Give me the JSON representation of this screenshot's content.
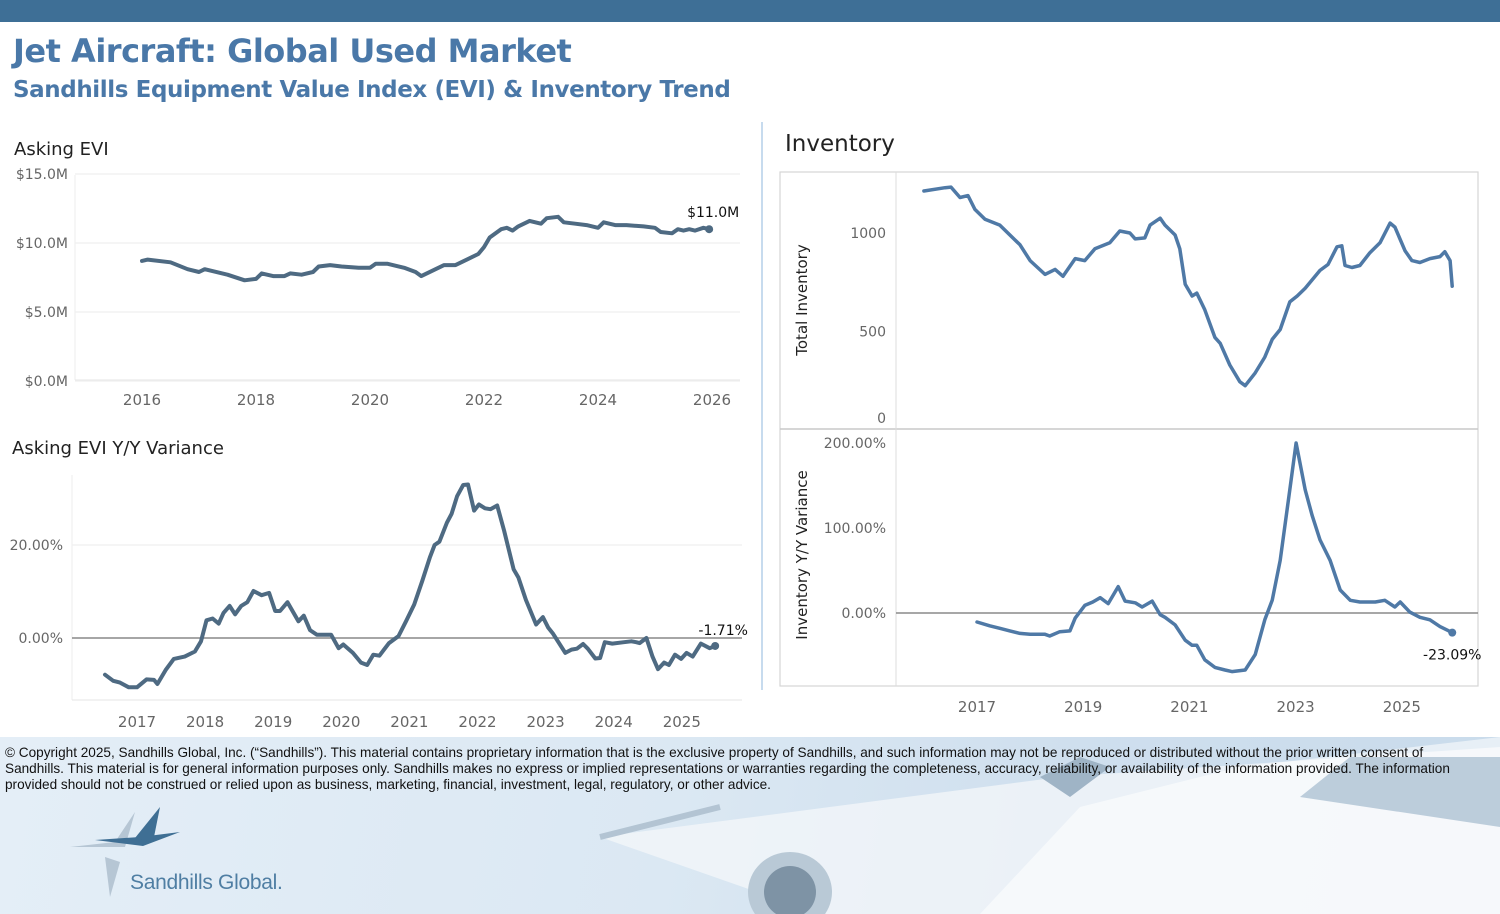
{
  "header": {
    "title": "Jet Aircraft:  Global Used Market",
    "subtitle": "Sandhills Equipment Value Index (EVI) & Inventory Trend"
  },
  "panels": {
    "asking_evi": "Asking EVI",
    "asking_evi_yy": "Asking EVI Y/Y Variance",
    "inventory": "Inventory"
  },
  "colors": {
    "header_bar": "#3e6f96",
    "title": "#4a78a8",
    "evi_line": "#4e6a82",
    "inventory_line": "#4f79a6"
  },
  "footer": {
    "legal": "© Copyright 2025, Sandhills Global, Inc. (“Sandhills”). This material contains proprietary information that is the exclusive property of Sandhills, and such information may not be reproduced or distributed without the prior written consent of Sandhills. This material is for general information purposes only. Sandhills makes no express or implied representations or warranties regarding the completeness, accuracy, reliability, or availability of the information provided. The information provided should not be construed or relied upon as business, marketing, financial, investment, legal, regulatory, or other advice.",
    "brand": "Sandhills Global."
  },
  "chart_data": [
    {
      "id": "evi",
      "type": "line",
      "title": "Asking EVI",
      "xlabel": "",
      "ylabel": "",
      "ylim": [
        0,
        15
      ],
      "xlim": [
        2015,
        2026.5
      ],
      "yticks": [
        "$0.0M",
        "$5.0M",
        "$10.0M",
        "$15.0M"
      ],
      "ytick_values": [
        0,
        5,
        10,
        15
      ],
      "xticks": [
        "2016",
        "2018",
        "2020",
        "2022",
        "2024",
        "2026"
      ],
      "xtick_values": [
        2016,
        2018,
        2020,
        2022,
        2024,
        2026
      ],
      "end_label": "$11.0M",
      "grid": true,
      "x": [
        2016.0,
        2016.1,
        2016.5,
        2016.8,
        2017.0,
        2017.1,
        2017.5,
        2017.8,
        2018.0,
        2018.1,
        2018.3,
        2018.5,
        2018.6,
        2018.8,
        2019.0,
        2019.1,
        2019.3,
        2019.5,
        2019.8,
        2020.0,
        2020.1,
        2020.3,
        2020.6,
        2020.8,
        2020.9,
        2021.2,
        2021.3,
        2021.5,
        2021.7,
        2021.9,
        2022.0,
        2022.1,
        2022.3,
        2022.4,
        2022.5,
        2022.6,
        2022.8,
        2023.0,
        2023.1,
        2023.3,
        2023.4,
        2023.6,
        2023.8,
        2024.0,
        2024.1,
        2024.3,
        2024.5,
        2024.8,
        2025.0,
        2025.1,
        2025.3,
        2025.4,
        2025.5,
        2025.6,
        2025.7,
        2025.85,
        2025.95
      ],
      "values": [
        8.7,
        8.8,
        8.6,
        8.1,
        7.9,
        8.1,
        7.7,
        7.3,
        7.4,
        7.8,
        7.6,
        7.6,
        7.8,
        7.7,
        7.9,
        8.3,
        8.4,
        8.3,
        8.2,
        8.2,
        8.5,
        8.5,
        8.2,
        7.9,
        7.6,
        8.2,
        8.4,
        8.4,
        8.8,
        9.2,
        9.7,
        10.4,
        11.0,
        11.1,
        10.9,
        11.2,
        11.6,
        11.4,
        11.8,
        11.9,
        11.5,
        11.4,
        11.3,
        11.1,
        11.5,
        11.3,
        11.3,
        11.2,
        11.1,
        10.8,
        10.7,
        11.0,
        10.9,
        11.0,
        10.9,
        11.1,
        11.0
      ]
    },
    {
      "id": "evi_yy",
      "type": "line",
      "title": "Asking EVI Y/Y Variance",
      "xlabel": "",
      "ylabel": "",
      "ylim": [
        -13,
        36
      ],
      "yticks": [
        "0.00%",
        "20.00%"
      ],
      "ytick_values": [
        0,
        20
      ],
      "xticks": [
        "2017",
        "2018",
        "2019",
        "2020",
        "2021",
        "2022",
        "2023",
        "2024",
        "2025"
      ],
      "xtick_values": [
        2017.5,
        2018.5,
        2019.5,
        2020.5,
        2021.5,
        2022.5,
        2023.5,
        2024.5,
        2025.5
      ],
      "end_label": "-1.71%",
      "reference_line": 0,
      "grid": true,
      "x": [
        2017.03,
        2017.15,
        2017.25,
        2017.38,
        2017.5,
        2017.64,
        2017.75,
        2017.8,
        2017.92,
        2018.04,
        2018.2,
        2018.35,
        2018.44,
        2018.52,
        2018.61,
        2018.7,
        2018.77,
        2018.86,
        2018.94,
        2019.03,
        2019.12,
        2019.21,
        2019.33,
        2019.44,
        2019.53,
        2019.6,
        2019.71,
        2019.8,
        2019.87,
        2019.95,
        2020.04,
        2020.14,
        2020.35,
        2020.46,
        2020.53,
        2020.67,
        2020.79,
        2020.88,
        2020.97,
        2021.06,
        2021.2,
        2021.34,
        2021.45,
        2021.57,
        2021.69,
        2021.8,
        2021.87,
        2021.94,
        2022.05,
        2022.12,
        2022.2,
        2022.29,
        2022.36,
        2022.45,
        2022.52,
        2022.61,
        2022.69,
        2022.79,
        2022.89,
        2023.03,
        2023.1,
        2023.21,
        2023.36,
        2023.46,
        2023.54,
        2023.61,
        2023.79,
        2023.88,
        2023.96,
        2024.05,
        2024.12,
        2024.23,
        2024.3,
        2024.37,
        2024.48,
        2024.65,
        2024.76,
        2024.83,
        2024.88,
        2024.98,
        2025.07,
        2025.15,
        2025.24,
        2025.31,
        2025.4,
        2025.49,
        2025.57,
        2025.66,
        2025.78,
        2025.91,
        2025.99
      ],
      "values": [
        -7.9,
        -9.2,
        -9.6,
        -10.6,
        -10.6,
        -8.9,
        -9.0,
        -9.9,
        -6.9,
        -4.5,
        -4.0,
        -2.9,
        -0.7,
        3.8,
        4.2,
        3.1,
        5.4,
        6.9,
        5.1,
        6.9,
        7.7,
        10.1,
        9.2,
        9.7,
        5.8,
        5.8,
        7.7,
        5.4,
        3.6,
        4.8,
        1.7,
        0.7,
        0.7,
        -2.2,
        -1.4,
        -3.2,
        -5.3,
        -5.8,
        -3.6,
        -3.8,
        -1.1,
        0.4,
        3.6,
        7.2,
        12.3,
        17.3,
        20.0,
        20.7,
        24.8,
        26.7,
        30.5,
        32.9,
        33.0,
        27.4,
        28.7,
        27.9,
        27.7,
        28.5,
        23.1,
        14.8,
        13.0,
        8.2,
        2.9,
        4.5,
        2.2,
        0.9,
        -3.2,
        -2.5,
        -2.3,
        -1.3,
        -2.3,
        -4.4,
        -4.3,
        -0.9,
        -1.2,
        -0.9,
        -0.7,
        -0.9,
        -1.1,
        0.0,
        -4.0,
        -6.7,
        -5.3,
        -5.8,
        -3.6,
        -4.5,
        -3.2,
        -4.0,
        -1.2,
        -2.2,
        -1.71
      ]
    },
    {
      "id": "inventory",
      "type": "line",
      "title": "Inventory",
      "xlabel": "",
      "ylabel": "Total Inventory",
      "ylim": [
        0,
        1290
      ],
      "yticks": [
        "0",
        "500",
        "1000"
      ],
      "ytick_values": [
        0,
        500,
        1000
      ],
      "grid": false,
      "x": [
        2016.0,
        2016.4,
        2016.51,
        2016.68,
        2016.83,
        2016.96,
        2017.15,
        2017.43,
        2017.62,
        2017.81,
        2018.0,
        2018.28,
        2018.47,
        2018.62,
        2018.85,
        2019.03,
        2019.22,
        2019.5,
        2019.69,
        2019.88,
        2019.98,
        2020.16,
        2020.26,
        2020.45,
        2020.54,
        2020.73,
        2020.82,
        2020.92,
        2021.05,
        2021.14,
        2021.29,
        2021.48,
        2021.58,
        2021.76,
        2021.95,
        2022.05,
        2022.24,
        2022.42,
        2022.56,
        2022.71,
        2022.89,
        2023.03,
        2023.18,
        2023.46,
        2023.61,
        2023.78,
        2023.87,
        2023.93,
        2024.06,
        2024.21,
        2024.4,
        2024.59,
        2024.78,
        2024.87,
        2025.06,
        2025.19,
        2025.34,
        2025.53,
        2025.72,
        2025.81,
        2025.91,
        2025.95
      ],
      "values": [
        1213,
        1230,
        1233,
        1180,
        1190,
        1120,
        1070,
        1040,
        990,
        940,
        860,
        790,
        815,
        780,
        870,
        860,
        920,
        950,
        1010,
        1000,
        970,
        975,
        1040,
        1075,
        1040,
        990,
        920,
        740,
        680,
        695,
        610,
        470,
        440,
        330,
        245,
        225,
        290,
        370,
        460,
        510,
        650,
        680,
        720,
        810,
        840,
        930,
        935,
        835,
        825,
        835,
        900,
        950,
        1050,
        1030,
        910,
        860,
        850,
        870,
        880,
        905,
        860,
        730
      ]
    },
    {
      "id": "inventory_yy",
      "type": "line",
      "title": "",
      "xlabel": "",
      "ylabel": "Inventory  Y/Y Variance",
      "ylim": [
        -85,
        210
      ],
      "yticks": [
        "0.00%",
        "100.00%",
        "200.00%"
      ],
      "ytick_values": [
        0,
        100,
        200
      ],
      "xticks": [
        "2017",
        "2019",
        "2021",
        "2023",
        "2025"
      ],
      "xtick_values": [
        2017,
        2019,
        2021,
        2023,
        2025
      ],
      "end_label": "-23.09%",
      "reference_line": 0,
      "grid": false,
      "x": [
        2017.0,
        2017.24,
        2017.43,
        2017.62,
        2017.81,
        2018.0,
        2018.28,
        2018.37,
        2018.56,
        2018.75,
        2018.85,
        2019.03,
        2019.18,
        2019.32,
        2019.47,
        2019.66,
        2019.79,
        2019.98,
        2020.11,
        2020.3,
        2020.45,
        2020.54,
        2020.73,
        2020.92,
        2021.05,
        2021.14,
        2021.29,
        2021.48,
        2021.67,
        2021.8,
        2022.05,
        2022.24,
        2022.42,
        2022.56,
        2022.71,
        2022.89,
        2023.01,
        2023.18,
        2023.31,
        2023.46,
        2023.65,
        2023.84,
        2024.03,
        2024.21,
        2024.5,
        2024.68,
        2024.87,
        2024.97,
        2025.15,
        2025.34,
        2025.53,
        2025.72,
        2025.95
      ],
      "values": [
        -10.6,
        -15,
        -18,
        -21,
        -24,
        -25,
        -25,
        -27,
        -22,
        -21,
        -6,
        9,
        13,
        18,
        11,
        31,
        14,
        12,
        7,
        14,
        -2,
        -5,
        -14,
        -32,
        -38,
        -38,
        -55,
        -64,
        -67,
        -69,
        -67,
        -49,
        -8,
        15,
        62,
        145,
        200,
        145,
        115,
        86,
        62,
        27,
        15,
        13,
        13,
        15,
        7,
        13,
        1,
        -5,
        -8,
        -16,
        -23.09
      ]
    }
  ]
}
